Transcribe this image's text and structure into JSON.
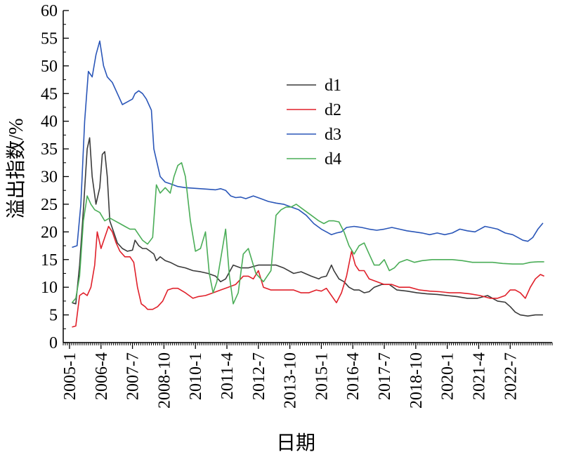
{
  "chart_data": {
    "type": "line",
    "xlabel": "日期",
    "ylabel": "溢出指数/%",
    "ylim": [
      0,
      60
    ],
    "yticks": [
      0,
      5,
      10,
      15,
      20,
      25,
      30,
      35,
      40,
      45,
      50,
      55,
      60
    ],
    "xlim": [
      2004.75,
      2024.1667
    ],
    "xticks": [
      {
        "label": "2005-1",
        "value": 2005.0
      },
      {
        "label": "2006-4",
        "value": 2006.25
      },
      {
        "label": "2007-7",
        "value": 2007.5
      },
      {
        "label": "2008-10",
        "value": 2008.75
      },
      {
        "label": "2010-1",
        "value": 2010.0
      },
      {
        "label": "2011-4",
        "value": 2011.25
      },
      {
        "label": "2012-7",
        "value": 2012.5
      },
      {
        "label": "2013-10",
        "value": 2013.75
      },
      {
        "label": "2015-1",
        "value": 2015.0
      },
      {
        "label": "2016-4",
        "value": 2016.25
      },
      {
        "label": "2017-7",
        "value": 2017.5
      },
      {
        "label": "2018-10",
        "value": 2018.75
      },
      {
        "label": "2020-1",
        "value": 2020.0
      },
      {
        "label": "2021-4",
        "value": 2021.25
      },
      {
        "label": "2022-7",
        "value": 2022.5
      }
    ],
    "grid": false,
    "legend_position": "upper-center",
    "series": [
      {
        "name": "d1",
        "color": "#3a3a3a",
        "x": [
          2005.1,
          2005.25,
          2005.4,
          2005.55,
          2005.7,
          2005.8,
          2005.9,
          2006.05,
          2006.2,
          2006.3,
          2006.4,
          2006.5,
          2006.6,
          2006.75,
          2006.9,
          2007.1,
          2007.3,
          2007.5,
          2007.6,
          2007.75,
          2007.9,
          2008.05,
          2008.2,
          2008.35,
          2008.45,
          2008.6,
          2008.8,
          2009.0,
          2009.3,
          2009.6,
          2009.9,
          2010.2,
          2010.5,
          2010.8,
          2011.0,
          2011.2,
          2011.5,
          2011.8,
          2012.1,
          2012.5,
          2012.9,
          2013.2,
          2013.5,
          2013.9,
          2014.2,
          2014.6,
          2014.9,
          2015.0,
          2015.2,
          2015.4,
          2015.5,
          2015.7,
          2015.9,
          2016.1,
          2016.3,
          2016.5,
          2016.7,
          2016.9,
          2017.1,
          2017.4,
          2017.7,
          2018.0,
          2018.4,
          2018.8,
          2019.2,
          2019.6,
          2020.0,
          2020.4,
          2020.8,
          2021.2,
          2021.6,
          2022.0,
          2022.3,
          2022.5,
          2022.7,
          2022.9,
          2023.2,
          2023.5,
          2023.8
        ],
        "y": [
          7.2,
          7.0,
          14,
          24,
          35,
          37,
          30,
          25,
          28,
          34,
          34.5,
          30,
          22,
          20,
          18,
          17,
          16.5,
          16.7,
          18.5,
          17.5,
          17,
          17,
          16.5,
          16,
          14.8,
          15.5,
          14.8,
          14.5,
          13.8,
          13.5,
          13,
          12.8,
          12.5,
          12,
          11.0,
          11.5,
          14,
          13.5,
          13.5,
          14,
          14,
          14,
          13.5,
          12.5,
          12.8,
          12,
          11.5,
          11.8,
          12,
          14,
          13,
          11.5,
          11,
          10,
          9.5,
          9.5,
          9.0,
          9.2,
          10,
          10.5,
          10.5,
          9.5,
          9.3,
          9.0,
          8.8,
          8.7,
          8.5,
          8.3,
          8.0,
          8.0,
          8.5,
          7.5,
          7.3,
          6.5,
          5.5,
          5.0,
          4.8,
          5.0,
          5.0
        ]
      },
      {
        "name": "d2",
        "color": "#e0202a",
        "x": [
          2005.1,
          2005.25,
          2005.4,
          2005.55,
          2005.7,
          2005.85,
          2006.0,
          2006.1,
          2006.25,
          2006.4,
          2006.55,
          2006.7,
          2006.85,
          2007.0,
          2007.2,
          2007.4,
          2007.55,
          2007.7,
          2007.85,
          2008.0,
          2008.1,
          2008.3,
          2008.5,
          2008.7,
          2008.9,
          2009.1,
          2009.3,
          2009.6,
          2009.9,
          2010.1,
          2010.4,
          2010.7,
          2011.0,
          2011.3,
          2011.6,
          2011.9,
          2012.1,
          2012.3,
          2012.5,
          2012.7,
          2013.0,
          2013.3,
          2013.6,
          2013.9,
          2014.2,
          2014.5,
          2014.8,
          2015.0,
          2015.2,
          2015.4,
          2015.6,
          2015.8,
          2016.0,
          2016.2,
          2016.35,
          2016.5,
          2016.7,
          2016.9,
          2017.2,
          2017.5,
          2017.8,
          2018.1,
          2018.5,
          2018.9,
          2019.3,
          2019.7,
          2020.1,
          2020.5,
          2020.9,
          2021.3,
          2021.7,
          2022.0,
          2022.3,
          2022.5,
          2022.7,
          2022.9,
          2023.1,
          2023.3,
          2023.5,
          2023.7,
          2023.85
        ],
        "y": [
          2.8,
          3.0,
          8.5,
          9.0,
          8.5,
          10,
          14,
          20,
          17,
          19,
          21,
          20,
          18,
          16.5,
          15.5,
          15.5,
          14.5,
          10,
          7,
          6.5,
          6.0,
          6.0,
          6.5,
          7.5,
          9.5,
          9.8,
          9.8,
          9.0,
          8.0,
          8.3,
          8.5,
          9.0,
          9.5,
          10,
          10.5,
          12,
          12,
          11.5,
          13,
          10,
          9.5,
          9.5,
          9.5,
          9.5,
          9.0,
          9.0,
          9.5,
          9.3,
          9.8,
          8.5,
          7.2,
          9,
          12,
          16.5,
          14,
          13,
          13,
          11.5,
          11,
          10.5,
          10.5,
          10,
          10,
          9.5,
          9.3,
          9.2,
          9.0,
          9.0,
          8.8,
          8.5,
          8.0,
          8.0,
          8.5,
          9.5,
          9.5,
          9.0,
          8.0,
          10,
          11.5,
          12.3,
          12.0
        ]
      },
      {
        "name": "d3",
        "color": "#2a56b8",
        "x": [
          2005.1,
          2005.3,
          2005.45,
          2005.6,
          2005.75,
          2005.9,
          2006.05,
          2006.2,
          2006.35,
          2006.5,
          2006.7,
          2006.9,
          2007.1,
          2007.3,
          2007.5,
          2007.6,
          2007.75,
          2007.9,
          2008.05,
          2008.15,
          2008.25,
          2008.35,
          2008.45,
          2008.6,
          2008.8,
          2009.0,
          2009.3,
          2009.6,
          2009.9,
          2010.2,
          2010.5,
          2010.8,
          2011.0,
          2011.2,
          2011.4,
          2011.6,
          2011.8,
          2012.0,
          2012.3,
          2012.6,
          2012.9,
          2013.2,
          2013.5,
          2013.8,
          2014.1,
          2014.4,
          2014.7,
          2015.0,
          2015.2,
          2015.4,
          2015.6,
          2015.8,
          2016.0,
          2016.3,
          2016.6,
          2016.9,
          2017.2,
          2017.5,
          2017.8,
          2018.1,
          2018.4,
          2018.7,
          2019.0,
          2019.3,
          2019.6,
          2019.9,
          2020.2,
          2020.5,
          2020.8,
          2021.1,
          2021.3,
          2021.5,
          2021.7,
          2022.0,
          2022.3,
          2022.6,
          2022.8,
          2023.0,
          2023.2,
          2023.4,
          2023.6,
          2023.8
        ],
        "y": [
          17.2,
          17.5,
          25,
          40,
          49,
          48,
          52,
          54.5,
          50,
          48,
          47,
          45,
          43,
          43.5,
          44,
          45,
          45.5,
          45,
          44,
          43,
          42,
          35,
          33,
          30,
          29,
          28.7,
          28.2,
          28,
          27.9,
          27.8,
          27.7,
          27.6,
          27.8,
          27.5,
          26.5,
          26.2,
          26.3,
          26,
          26.5,
          26,
          25.5,
          25.2,
          25,
          24.5,
          24,
          23,
          21.5,
          20.5,
          20,
          19.5,
          19.8,
          20,
          20.8,
          21,
          20.8,
          20.5,
          20.3,
          20.5,
          20.8,
          20.5,
          20.2,
          20,
          19.8,
          19.5,
          19.8,
          19.5,
          19.8,
          20.5,
          20.2,
          20,
          20.5,
          21,
          20.8,
          20.5,
          19.8,
          19.5,
          19,
          18.5,
          18.3,
          19,
          20.5,
          21.6
        ]
      },
      {
        "name": "d4",
        "color": "#4aad57",
        "x": [
          2005.1,
          2005.25,
          2005.4,
          2005.55,
          2005.7,
          2005.85,
          2006.0,
          2006.2,
          2006.4,
          2006.6,
          2006.8,
          2007.0,
          2007.2,
          2007.4,
          2007.6,
          2007.75,
          2007.9,
          2008.1,
          2008.3,
          2008.45,
          2008.6,
          2008.8,
          2009.0,
          2009.15,
          2009.3,
          2009.45,
          2009.6,
          2009.8,
          2010.0,
          2010.2,
          2010.4,
          2010.55,
          2010.7,
          2010.85,
          2011.0,
          2011.2,
          2011.35,
          2011.5,
          2011.7,
          2011.9,
          2012.1,
          2012.4,
          2012.7,
          2013.0,
          2013.2,
          2013.4,
          2013.6,
          2013.8,
          2014.0,
          2014.3,
          2014.6,
          2014.9,
          2015.1,
          2015.3,
          2015.5,
          2015.7,
          2015.9,
          2016.1,
          2016.3,
          2016.5,
          2016.7,
          2016.9,
          2017.1,
          2017.3,
          2017.5,
          2017.7,
          2017.9,
          2018.1,
          2018.4,
          2018.7,
          2019.0,
          2019.4,
          2019.8,
          2020.2,
          2020.6,
          2021.0,
          2021.4,
          2021.8,
          2022.2,
          2022.6,
          2023.0,
          2023.3,
          2023.6,
          2023.85
        ],
        "y": [
          7.2,
          8.0,
          12,
          22,
          26.5,
          25,
          24,
          23.5,
          22,
          22.5,
          22,
          21.5,
          21,
          20.5,
          20.5,
          19.5,
          18.5,
          17.8,
          19,
          28.5,
          27,
          28,
          27,
          30,
          32,
          32.5,
          30,
          22,
          16.5,
          17,
          20,
          12.5,
          9,
          11,
          15,
          20.5,
          12,
          7.0,
          9,
          16,
          17,
          12.5,
          11,
          13,
          23,
          24,
          24.5,
          24.5,
          25,
          24,
          23,
          22,
          21.5,
          22,
          22,
          21.8,
          20,
          17.5,
          16,
          17.5,
          18,
          16,
          14,
          14,
          15,
          13,
          13.5,
          14.5,
          15,
          14.5,
          14.8,
          15,
          15,
          15,
          14.8,
          14.5,
          14.5,
          14.5,
          14.3,
          14.2,
          14.2,
          14.5,
          14.6,
          14.6
        ]
      }
    ]
  }
}
